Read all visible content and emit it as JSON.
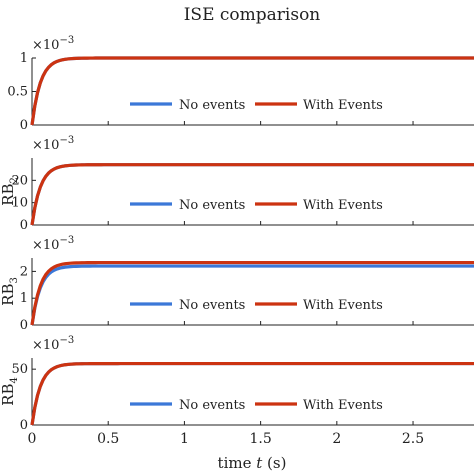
{
  "chart_data": {
    "type": "line",
    "title": "ISE comparison",
    "xlabel_pre": "time ",
    "xlabel_var": "t",
    "xlabel_post": " (s)",
    "xlim": [
      0,
      2.9
    ],
    "x_ticks": [
      "0",
      "0.5",
      "1",
      "1.5",
      "2",
      "2.5"
    ],
    "x_tick_values": [
      0,
      0.5,
      1,
      1.5,
      2,
      2.5
    ],
    "legend_placement": "bottom-right (inside each panel)",
    "colors": {
      "no_events": "#3b78d8",
      "with_events": "#cc3311"
    },
    "panels": [
      {
        "ylabel": "",
        "ylabel_sub": "",
        "exponent_base": "×10",
        "exponent": "−3",
        "ylim": [
          0,
          1
        ],
        "y_ticks": [
          "0",
          "0.5",
          "1"
        ],
        "y_tick_values": [
          0,
          0.5,
          1
        ],
        "series": [
          {
            "name": "No events",
            "steady_state": 1.0
          },
          {
            "name": "With Events",
            "steady_state": 1.0
          }
        ]
      },
      {
        "ylabel": "RB",
        "ylabel_sub": "2",
        "exponent_base": "×10",
        "exponent": "−3",
        "ylim": [
          0,
          30
        ],
        "y_ticks": [
          "0",
          "10",
          "20"
        ],
        "y_tick_values": [
          0,
          10,
          20
        ],
        "series": [
          {
            "name": "No events",
            "steady_state": 27
          },
          {
            "name": "With Events",
            "steady_state": 27
          }
        ]
      },
      {
        "ylabel": "RB",
        "ylabel_sub": "3",
        "exponent_base": "×10",
        "exponent": "−3",
        "ylim": [
          0,
          2.5
        ],
        "y_ticks": [
          "0",
          "1",
          "2"
        ],
        "y_tick_values": [
          0,
          1,
          2
        ],
        "series": [
          {
            "name": "No events",
            "steady_state": 2.2
          },
          {
            "name": "With Events",
            "steady_state": 2.33
          }
        ]
      },
      {
        "ylabel": "RB",
        "ylabel_sub": "4",
        "exponent_base": "×10",
        "exponent": "−3",
        "ylim": [
          0,
          60
        ],
        "y_ticks": [
          "0",
          "50"
        ],
        "y_tick_values": [
          0,
          50
        ],
        "series": [
          {
            "name": "No events",
            "steady_state": 55
          },
          {
            "name": "With Events",
            "steady_state": 55
          }
        ]
      }
    ]
  }
}
